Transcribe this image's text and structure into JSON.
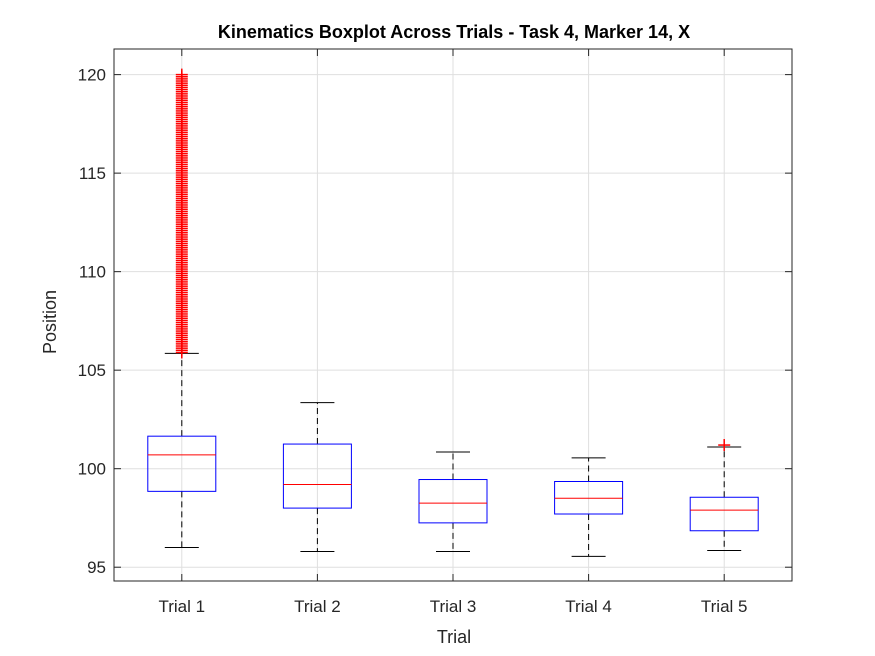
{
  "chart_data": {
    "type": "boxplot",
    "title": "Kinematics Boxplot Across Trials - Task 4, Marker 14, X",
    "xlabel": "Trial",
    "ylabel": "Position",
    "ylim": [
      94.3,
      121.3
    ],
    "yticks": [
      95,
      100,
      105,
      110,
      115,
      120
    ],
    "grid": true,
    "categories": [
      "Trial 1",
      "Trial 2",
      "Trial 3",
      "Trial 4",
      "Trial 5"
    ],
    "boxes": [
      {
        "whisker_low": 96.0,
        "q1": 98.85,
        "median": 100.7,
        "q3": 101.65,
        "whisker_high": 105.85,
        "outlier_range": [
          105.9,
          120.0
        ]
      },
      {
        "whisker_low": 95.8,
        "q1": 98.0,
        "median": 99.2,
        "q3": 101.25,
        "whisker_high": 103.35,
        "outliers": []
      },
      {
        "whisker_low": 95.8,
        "q1": 97.25,
        "median": 98.25,
        "q3": 99.45,
        "whisker_high": 100.85,
        "outliers": []
      },
      {
        "whisker_low": 95.55,
        "q1": 97.7,
        "median": 98.5,
        "q3": 99.35,
        "whisker_high": 100.55,
        "outliers": []
      },
      {
        "whisker_low": 95.85,
        "q1": 96.85,
        "median": 97.9,
        "q3": 98.55,
        "whisker_high": 101.1,
        "outliers": [
          101.2
        ]
      }
    ],
    "colors": {
      "box": "#0000ff",
      "median": "#ff0000",
      "whisker": "#000000",
      "outlier": "#ff0000",
      "grid": "#dfdfdf",
      "axis": "#262626"
    }
  }
}
